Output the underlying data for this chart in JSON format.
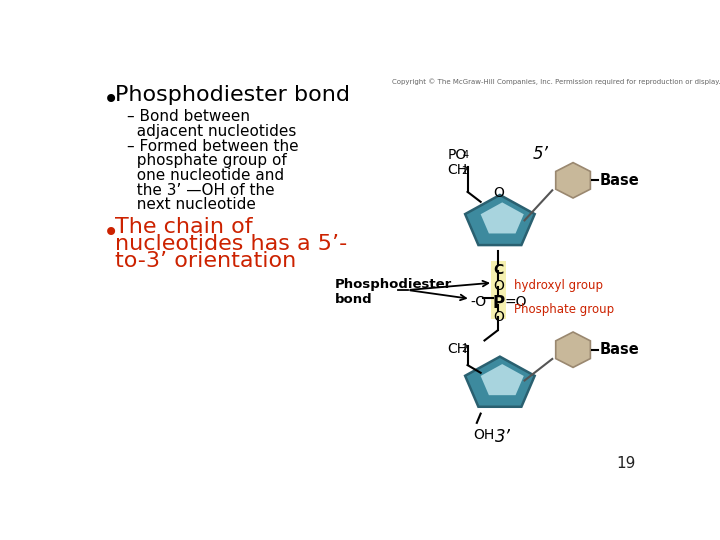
{
  "bg_color": "#ffffff",
  "bullet1_text": "Phosphodiester bond",
  "sub1_line1": "– Bond between",
  "sub1_line2": "  adjacent nucleotides",
  "sub2_line1": "– Formed between the",
  "sub2_line2": "  phosphate group of",
  "sub2_line3": "  one nucleotide and",
  "sub2_line4": "  the 3’ —OH of the",
  "sub2_line5": "  next nucleotide",
  "bullet2_line1": "The chain of",
  "bullet2_line2": "nucleotides has a 5’-",
  "bullet2_line3": "to-3’ orientation",
  "copyright": "Copyright © The McGraw-Hill Companies, Inc. Permission required for reproduction or display.",
  "lbl_5prime": "5’",
  "lbl_3prime": "3’",
  "lbl_PO4_main": "PO",
  "lbl_PO4_sub": "4",
  "lbl_CH2_main": "CH",
  "lbl_CH2_sub": "2",
  "lbl_O_top": "O",
  "lbl_O_mid": "O",
  "lbl_O_bot": "O",
  "lbl_C": "C",
  "lbl_neg_O": "-O",
  "lbl_P": "P",
  "lbl_eq_O": "=O",
  "lbl_OH": "OH",
  "lbl_Base": "Base",
  "lbl_hydroxyl": "hydroxyl group",
  "lbl_phosphate": "Phosphate group",
  "lbl_phosphodiester": "Phosphodiester\nbond",
  "lbl_page": "19",
  "sugar_dark": "#3d8a9e",
  "sugar_mid": "#5fa8b8",
  "sugar_light": "#a8d4de",
  "sugar_edge": "#2a6070",
  "base_fill": "#c8b89a",
  "base_edge": "#9a8870",
  "highlight_fill": "#f5f0b0",
  "red_color": "#cc2200",
  "black": "#000000",
  "gray_line": "#555555",
  "page_num_color": "#222222"
}
